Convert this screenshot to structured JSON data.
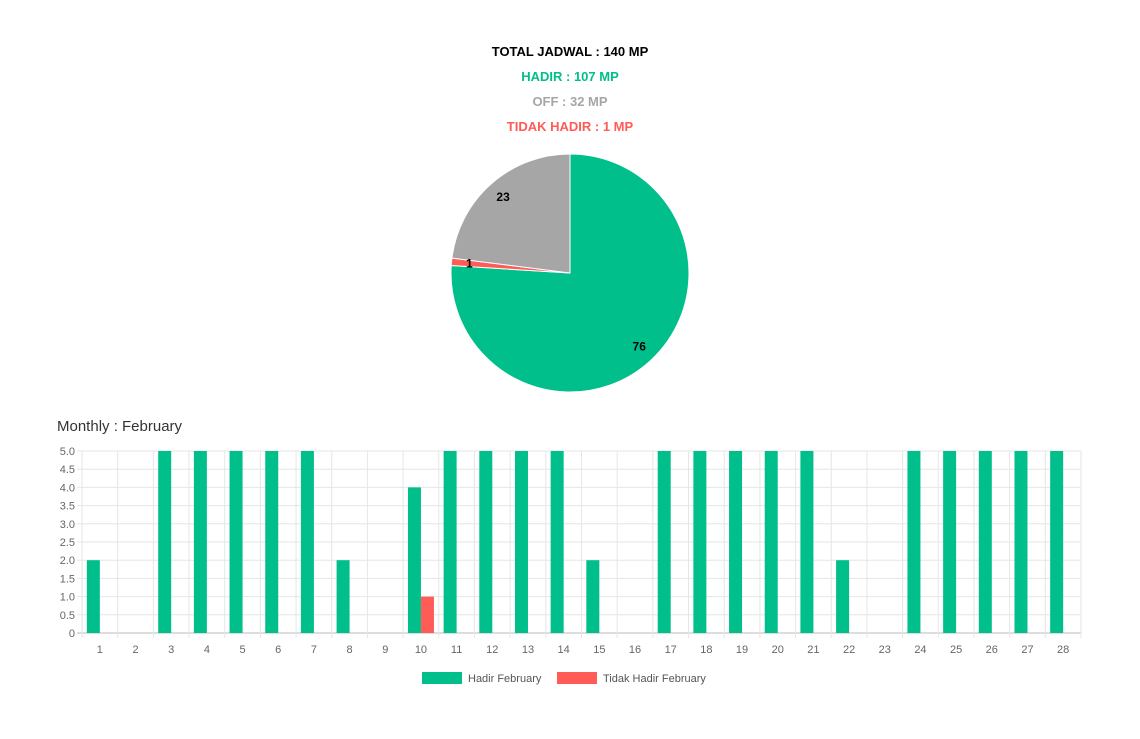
{
  "summary": {
    "total": "TOTAL JADWAL : 140 MP",
    "hadir": "HADIR : 107 MP",
    "off": "OFF : 32 MP",
    "tidak_hadir": "TIDAK HADIR : 1 MP"
  },
  "colors": {
    "hadir": "#00bf8a",
    "off": "#a6a6a6",
    "tidak_hadir": "#ff5b57"
  },
  "chart_data": [
    {
      "type": "pie",
      "slices": [
        {
          "name": "Hadir",
          "value": 76,
          "label": "76",
          "color": "#00bf8a"
        },
        {
          "name": "Tidak Hadir",
          "value": 1,
          "label": "1",
          "color": "#ff5b57"
        },
        {
          "name": "Off",
          "value": 23,
          "label": "23",
          "color": "#a6a6a6"
        }
      ]
    },
    {
      "type": "bar",
      "title": "Monthly : February",
      "categories": [
        "1",
        "2",
        "3",
        "4",
        "5",
        "6",
        "7",
        "8",
        "9",
        "10",
        "11",
        "12",
        "13",
        "14",
        "15",
        "16",
        "17",
        "18",
        "19",
        "20",
        "21",
        "22",
        "23",
        "24",
        "25",
        "26",
        "27",
        "28"
      ],
      "series": [
        {
          "name": "Hadir February",
          "color": "#00bf8a",
          "values": [
            2,
            0,
            5,
            5,
            5,
            5,
            5,
            2,
            0,
            4,
            5,
            5,
            5,
            5,
            2,
            0,
            5,
            5,
            5,
            5,
            5,
            2,
            0,
            5,
            5,
            5,
            5,
            5
          ]
        },
        {
          "name": "Tidak Hadir February",
          "color": "#ff5b57",
          "values": [
            0,
            0,
            0,
            0,
            0,
            0,
            0,
            0,
            0,
            1,
            0,
            0,
            0,
            0,
            0,
            0,
            0,
            0,
            0,
            0,
            0,
            0,
            0,
            0,
            0,
            0,
            0,
            0
          ]
        }
      ],
      "ylim": [
        0,
        5
      ],
      "yticks": [
        "0",
        "0.5",
        "1.0",
        "1.5",
        "2.0",
        "2.5",
        "3.0",
        "3.5",
        "4.0",
        "4.5",
        "5.0"
      ],
      "grid": true,
      "legend": "bottom"
    }
  ]
}
